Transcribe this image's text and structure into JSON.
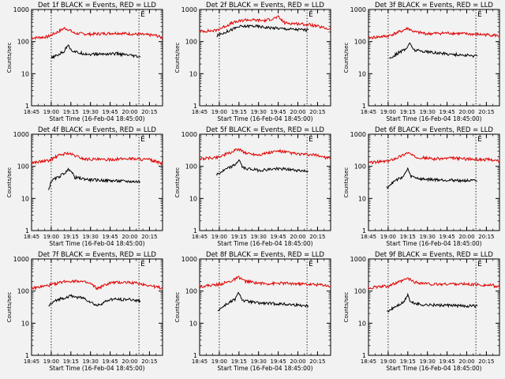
{
  "chart_data": [
    {
      "type": "line",
      "title": "Det 1f BLACK = Events, RED = LLD",
      "xlabel": "Start Time (16-Feb-04 18:45:00)",
      "ylabel": "Counts/sec",
      "xlim": [
        "18:45",
        "20:25"
      ],
      "ylim": [
        1,
        1000
      ],
      "yscale": "log",
      "xticks": [
        "18:45",
        "19:00",
        "19:15",
        "19:30",
        "19:45",
        "20:00",
        "20:15"
      ],
      "yticks": [
        "1",
        "10",
        "100",
        "1000"
      ],
      "markers": [
        {
          "time": "19:00",
          "label": ""
        },
        {
          "time": "20:07",
          "label": "E"
        }
      ],
      "series": [
        {
          "name": "LLD",
          "color": "#e00000",
          "x": [
            "18:45",
            "18:57",
            "19:05",
            "19:10",
            "19:13",
            "19:18",
            "19:30",
            "19:50",
            "20:10",
            "20:20",
            "20:25"
          ],
          "values": [
            130,
            140,
            200,
            260,
            240,
            180,
            170,
            185,
            165,
            155,
            130
          ]
        },
        {
          "name": "Events",
          "color": "#000000",
          "x": [
            "19:00",
            "19:05",
            "19:10",
            "19:13",
            "19:15",
            "19:20",
            "19:30",
            "19:50",
            "20:08"
          ],
          "values": [
            30,
            38,
            50,
            85,
            55,
            45,
            40,
            42,
            33
          ]
        }
      ]
    },
    {
      "type": "line",
      "title": "Det 2f BLACK = Events, RED = LLD",
      "xlabel": "Start Time (16-Feb-04 18:45:00)",
      "ylabel": "Counts/sec",
      "xlim": [
        "18:45",
        "20:25"
      ],
      "ylim": [
        1,
        1000
      ],
      "yscale": "log",
      "xticks": [
        "18:45",
        "19:00",
        "19:15",
        "19:30",
        "19:45",
        "20:00",
        "20:15"
      ],
      "yticks": [
        "1",
        "10",
        "100",
        "1000"
      ],
      "markers": [
        {
          "time": "19:00",
          "label": ""
        },
        {
          "time": "20:07",
          "label": "E"
        }
      ],
      "series": [
        {
          "name": "LLD",
          "color": "#e00000",
          "x": [
            "18:45",
            "18:57",
            "19:10",
            "19:20",
            "19:35",
            "19:45",
            "19:50",
            "20:00",
            "20:10",
            "20:25"
          ],
          "values": [
            210,
            220,
            380,
            480,
            450,
            580,
            380,
            360,
            330,
            240
          ]
        },
        {
          "name": "Events",
          "color": "#000000",
          "x": [
            "18:58",
            "19:05",
            "19:15",
            "19:25",
            "19:35",
            "19:50",
            "20:08"
          ],
          "values": [
            150,
            200,
            290,
            310,
            280,
            250,
            230
          ]
        }
      ]
    },
    {
      "type": "line",
      "title": "Det 3f BLACK = Events, RED = LLD",
      "xlabel": "Start Time (16-Feb-04 18:45:00)",
      "ylabel": "Counts/sec",
      "xlim": [
        "18:45",
        "20:25"
      ],
      "ylim": [
        1,
        1000
      ],
      "yscale": "log",
      "xticks": [
        "18:45",
        "19:00",
        "19:15",
        "19:30",
        "19:45",
        "20:00",
        "20:15"
      ],
      "yticks": [
        "1",
        "10",
        "100",
        "1000"
      ],
      "markers": [
        {
          "time": "19:00",
          "label": ""
        },
        {
          "time": "20:07",
          "label": "E"
        }
      ],
      "series": [
        {
          "name": "LLD",
          "color": "#e00000",
          "x": [
            "18:45",
            "19:00",
            "19:10",
            "19:15",
            "19:20",
            "19:30",
            "19:45",
            "20:05",
            "20:20",
            "20:25"
          ],
          "values": [
            130,
            150,
            210,
            260,
            200,
            175,
            185,
            170,
            160,
            150
          ]
        },
        {
          "name": "Events",
          "color": "#000000",
          "x": [
            "19:01",
            "19:08",
            "19:14",
            "19:16",
            "19:20",
            "19:35",
            "19:50",
            "20:08"
          ],
          "values": [
            30,
            45,
            60,
            90,
            55,
            45,
            40,
            35
          ]
        }
      ]
    },
    {
      "type": "line",
      "title": "Det 4f BLACK = Events, RED = LLD",
      "xlabel": "Start Time (16-Feb-04 18:45:00)",
      "ylabel": "Counts/sec",
      "xlim": [
        "18:45",
        "20:25"
      ],
      "ylim": [
        1,
        1000
      ],
      "yscale": "log",
      "xticks": [
        "18:45",
        "19:00",
        "19:15",
        "19:30",
        "19:45",
        "20:00",
        "20:15"
      ],
      "yticks": [
        "1",
        "10",
        "100",
        "1000"
      ],
      "markers": [
        {
          "time": "19:00",
          "label": ""
        },
        {
          "time": "20:07",
          "label": "E"
        }
      ],
      "series": [
        {
          "name": "LLD",
          "color": "#e00000",
          "x": [
            "18:45",
            "18:58",
            "19:05",
            "19:12",
            "19:16",
            "19:25",
            "19:40",
            "20:00",
            "20:15",
            "20:25"
          ],
          "values": [
            130,
            150,
            210,
            260,
            230,
            170,
            160,
            175,
            160,
            120
          ]
        },
        {
          "name": "Events",
          "color": "#000000",
          "x": [
            "18:58",
            "19:00",
            "19:05",
            "19:12",
            "19:14",
            "19:18",
            "19:30",
            "19:50",
            "20:08"
          ],
          "values": [
            18,
            35,
            45,
            70,
            85,
            45,
            38,
            35,
            33
          ]
        }
      ]
    },
    {
      "type": "line",
      "title": "Det 5f BLACK = Events, RED = LLD",
      "xlabel": "Start Time (16-Feb-04 18:45:00)",
      "ylabel": "Counts/sec",
      "xlim": [
        "18:45",
        "20:25"
      ],
      "ylim": [
        1,
        1000
      ],
      "yscale": "log",
      "xticks": [
        "18:45",
        "19:00",
        "19:15",
        "19:30",
        "19:45",
        "20:00",
        "20:15"
      ],
      "yticks": [
        "1",
        "10",
        "100",
        "1000"
      ],
      "markers": [
        {
          "time": "19:00",
          "label": ""
        },
        {
          "time": "20:07",
          "label": "E"
        }
      ],
      "series": [
        {
          "name": "LLD",
          "color": "#e00000",
          "x": [
            "18:45",
            "18:58",
            "19:08",
            "19:15",
            "19:20",
            "19:30",
            "19:45",
            "20:00",
            "20:15",
            "20:25"
          ],
          "values": [
            170,
            190,
            260,
            350,
            260,
            230,
            300,
            240,
            220,
            170
          ]
        },
        {
          "name": "Events",
          "color": "#000000",
          "x": [
            "18:58",
            "19:05",
            "19:12",
            "19:15",
            "19:18",
            "19:30",
            "19:45",
            "20:08"
          ],
          "values": [
            55,
            80,
            110,
            160,
            90,
            75,
            85,
            70
          ]
        }
      ]
    },
    {
      "type": "line",
      "title": "Det 6f BLACK = Events, RED = LLD",
      "xlabel": "Start Time (16-Feb-04 18:45:00)",
      "ylabel": "Counts/sec",
      "xlim": [
        "18:45",
        "20:25"
      ],
      "ylim": [
        1,
        1000
      ],
      "yscale": "log",
      "xticks": [
        "18:45",
        "19:00",
        "19:15",
        "19:30",
        "19:45",
        "20:00",
        "20:15"
      ],
      "yticks": [
        "1",
        "10",
        "100",
        "1000"
      ],
      "markers": [
        {
          "time": "19:00",
          "label": ""
        },
        {
          "time": "20:07",
          "label": "E"
        }
      ],
      "series": [
        {
          "name": "LLD",
          "color": "#e00000",
          "x": [
            "18:45",
            "19:00",
            "19:10",
            "19:15",
            "19:20",
            "19:35",
            "19:50",
            "20:05",
            "20:20",
            "20:25"
          ],
          "values": [
            130,
            145,
            210,
            270,
            200,
            170,
            180,
            165,
            160,
            140
          ]
        },
        {
          "name": "Events",
          "color": "#000000",
          "x": [
            "18:59",
            "19:05",
            "19:12",
            "19:15",
            "19:17",
            "19:25",
            "19:40",
            "20:08"
          ],
          "values": [
            22,
            35,
            50,
            85,
            50,
            40,
            38,
            35
          ]
        }
      ]
    },
    {
      "type": "line",
      "title": "Det 7f BLACK = Events, RED = LLD",
      "xlabel": "Start Time (16-Feb-04 18:45:00)",
      "ylabel": "Counts/sec",
      "xlim": [
        "18:45",
        "20:25"
      ],
      "ylim": [
        1,
        1000
      ],
      "yscale": "log",
      "xticks": [
        "18:45",
        "19:00",
        "19:15",
        "19:30",
        "19:45",
        "20:00",
        "20:15"
      ],
      "yticks": [
        "1",
        "10",
        "100",
        "1000"
      ],
      "markers": [
        {
          "time": "19:00",
          "label": ""
        },
        {
          "time": "20:07",
          "label": "E"
        }
      ],
      "series": [
        {
          "name": "LLD",
          "color": "#e00000",
          "x": [
            "18:45",
            "18:58",
            "19:10",
            "19:20",
            "19:30",
            "19:35",
            "19:45",
            "20:00",
            "20:15",
            "20:25"
          ],
          "values": [
            120,
            150,
            200,
            210,
            170,
            120,
            180,
            190,
            150,
            120
          ]
        },
        {
          "name": "Events",
          "color": "#000000",
          "x": [
            "18:58",
            "19:05",
            "19:15",
            "19:25",
            "19:35",
            "19:45",
            "20:00",
            "20:08"
          ],
          "values": [
            35,
            55,
            70,
            60,
            35,
            55,
            55,
            50
          ]
        }
      ]
    },
    {
      "type": "line",
      "title": "Det 8f BLACK = Events, RED = LLD",
      "xlabel": "Start Time (16-Feb-04 18:45:00)",
      "ylabel": "Counts/sec",
      "xlim": [
        "18:45",
        "20:25"
      ],
      "ylim": [
        1,
        1000
      ],
      "yscale": "log",
      "xticks": [
        "18:45",
        "19:00",
        "19:15",
        "19:30",
        "19:45",
        "20:00",
        "20:15"
      ],
      "yticks": [
        "1",
        "10",
        "100",
        "1000"
      ],
      "markers": [
        {
          "time": "19:00",
          "label": ""
        },
        {
          "time": "20:07",
          "label": "E"
        }
      ],
      "series": [
        {
          "name": "LLD",
          "color": "#e00000",
          "x": [
            "18:45",
            "19:00",
            "19:10",
            "19:15",
            "19:20",
            "19:35",
            "19:50",
            "20:05",
            "20:20",
            "20:25"
          ],
          "values": [
            140,
            160,
            210,
            270,
            200,
            170,
            175,
            165,
            155,
            140
          ]
        },
        {
          "name": "Events",
          "color": "#000000",
          "x": [
            "18:59",
            "19:05",
            "19:12",
            "19:15",
            "19:18",
            "19:30",
            "19:45",
            "20:08"
          ],
          "values": [
            25,
            38,
            55,
            90,
            50,
            42,
            40,
            35
          ]
        }
      ]
    },
    {
      "type": "line",
      "title": "Det 9f BLACK = Events, RED = LLD",
      "xlabel": "Start Time (16-Feb-04 18:45:00)",
      "ylabel": "Counts/sec",
      "xlim": [
        "18:45",
        "20:25"
      ],
      "ylim": [
        1,
        1000
      ],
      "yscale": "log",
      "xticks": [
        "18:45",
        "19:00",
        "19:15",
        "19:30",
        "19:45",
        "20:00",
        "20:15"
      ],
      "yticks": [
        "1",
        "10",
        "100",
        "1000"
      ],
      "markers": [
        {
          "time": "19:00",
          "label": ""
        },
        {
          "time": "20:07",
          "label": "E"
        }
      ],
      "series": [
        {
          "name": "LLD",
          "color": "#e00000",
          "x": [
            "18:45",
            "19:00",
            "19:10",
            "19:15",
            "19:20",
            "19:35",
            "19:50",
            "20:05",
            "20:20",
            "20:25"
          ],
          "values": [
            125,
            145,
            200,
            250,
            190,
            160,
            170,
            160,
            150,
            130
          ]
        },
        {
          "name": "Events",
          "color": "#000000",
          "x": [
            "18:59",
            "19:05",
            "19:12",
            "19:15",
            "19:17",
            "19:25",
            "19:40",
            "20:08"
          ],
          "values": [
            22,
            32,
            45,
            80,
            45,
            38,
            36,
            34
          ]
        }
      ]
    }
  ]
}
